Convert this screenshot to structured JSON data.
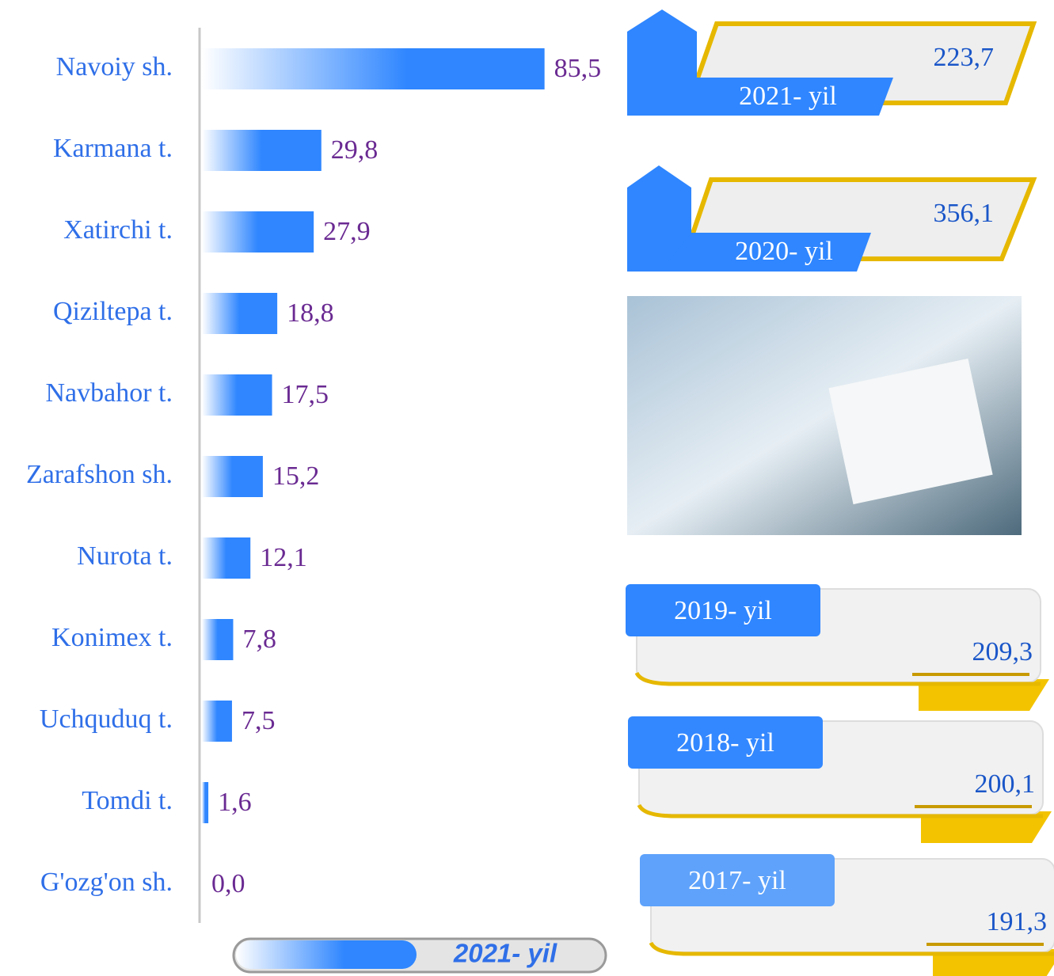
{
  "chart_data": {
    "type": "hbar",
    "categories": [
      "Navoiy sh.",
      "Karmana t.",
      "Xatirchi t.",
      "Qiziltepa t.",
      "Navbahor t.",
      "Zarafshon sh.",
      "Nurota t.",
      "Konimex t.",
      "Uchquduq t.",
      "Tomdi t.",
      "G'ozg'on sh."
    ],
    "values": [
      85.5,
      29.8,
      27.9,
      18.8,
      17.5,
      15.2,
      12.1,
      7.8,
      7.5,
      1.6,
      0.0
    ],
    "value_labels": [
      "85,5",
      "29,8",
      "27,9",
      "18,8",
      "17,5",
      "15,2",
      "12,1",
      "7,8",
      "7,5",
      "1,6",
      "0,0"
    ],
    "color": "#2f86ff",
    "xlim": [
      0,
      100
    ],
    "legend": "2021- yil"
  },
  "cards": [
    {
      "label": "2021- yil",
      "value": "223,7"
    },
    {
      "label": "2020- yil",
      "value": "356,1"
    },
    {
      "label": "2019- yil",
      "value": "209,3"
    },
    {
      "label": "2018- yil",
      "value": "200,1"
    },
    {
      "label": "2017- yil",
      "value": "191,3"
    }
  ]
}
